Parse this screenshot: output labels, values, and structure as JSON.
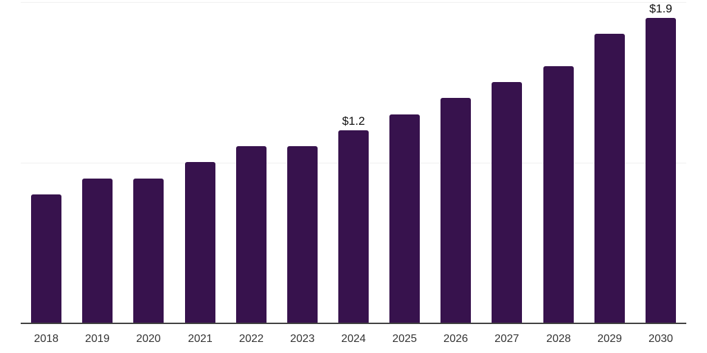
{
  "chart_data": {
    "type": "bar",
    "title": "",
    "xlabel": "",
    "ylabel": "",
    "categories": [
      "2018",
      "2019",
      "2020",
      "2021",
      "2022",
      "2023",
      "2024",
      "2025",
      "2026",
      "2027",
      "2028",
      "2029",
      "2030"
    ],
    "values": [
      0.8,
      0.9,
      0.9,
      1.0,
      1.1,
      1.1,
      1.2,
      1.3,
      1.4,
      1.5,
      1.6,
      1.8,
      1.9
    ],
    "point_labels": [
      null,
      null,
      null,
      null,
      null,
      null,
      "$1.2",
      null,
      null,
      null,
      null,
      null,
      "$1.9"
    ],
    "ylim": [
      0,
      2.0
    ],
    "gridlines_y": [
      1.0,
      2.0
    ],
    "grid": "horizontal-faint",
    "legend": "none"
  },
  "colors": {
    "background": "#ffffff",
    "bar": "#37124d",
    "axis_line": "#3f3f3f",
    "gridline": "#f0f0f0",
    "tick_label": "#333333",
    "data_label": "#0f0f0f"
  }
}
